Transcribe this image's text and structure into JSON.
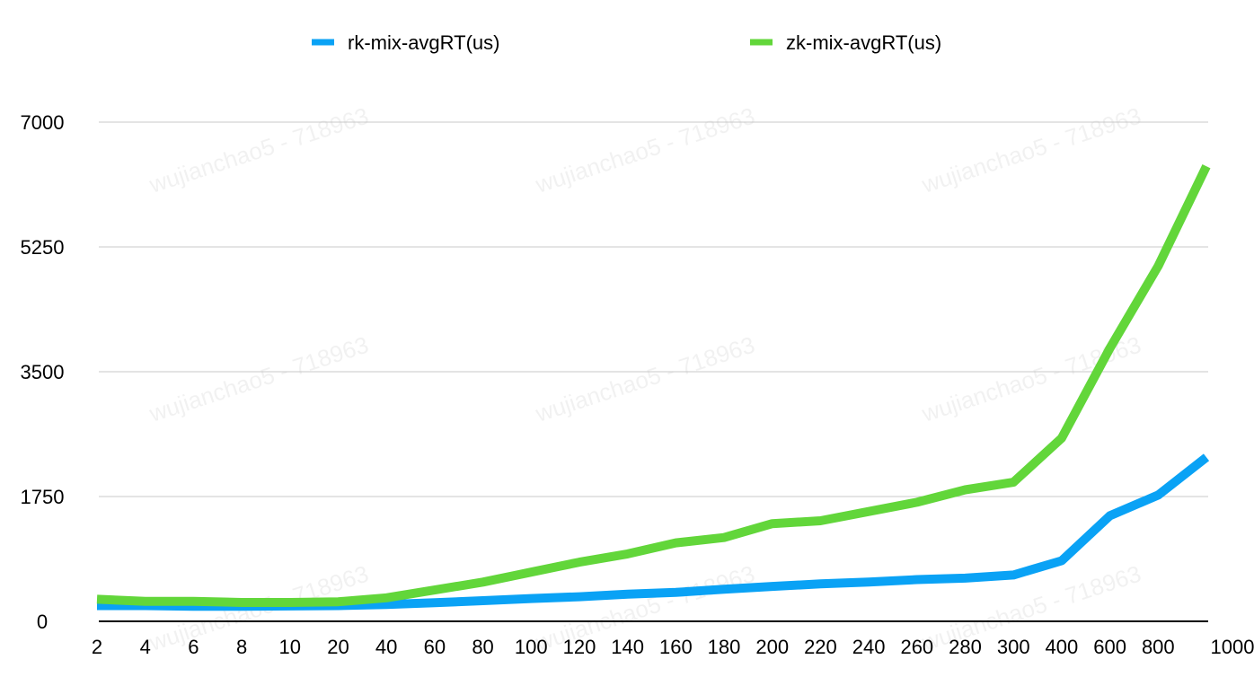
{
  "watermark": "wujianchao5 - 718963",
  "chart_data": {
    "type": "line",
    "title": "",
    "xlabel": "",
    "ylabel": "",
    "categories": [
      "2",
      "4",
      "6",
      "8",
      "10",
      "20",
      "40",
      "60",
      "80",
      "100",
      "120",
      "140",
      "160",
      "180",
      "200",
      "220",
      "240",
      "260",
      "280",
      "300",
      "400",
      "600",
      "800",
      "1000"
    ],
    "ylim": [
      0,
      7000
    ],
    "yticks": [
      0,
      1750,
      3500,
      5250,
      7000
    ],
    "grid": true,
    "legend_position": "top",
    "series": [
      {
        "name": "rk-mix-avgRT(us)",
        "color": "#0aa2f5",
        "values": [
          220,
          220,
          210,
          210,
          215,
          220,
          235,
          260,
          290,
          320,
          345,
          380,
          405,
          450,
          490,
          525,
          550,
          585,
          605,
          650,
          850,
          1480,
          1770,
          2300
        ]
      },
      {
        "name": "zk-mix-avgRT(us)",
        "color": "#62d63a",
        "values": [
          310,
          280,
          280,
          265,
          265,
          275,
          330,
          440,
          550,
          690,
          830,
          945,
          1100,
          1175,
          1370,
          1410,
          1540,
          1670,
          1845,
          1950,
          2570,
          3830,
          4980,
          6380
        ]
      }
    ]
  }
}
